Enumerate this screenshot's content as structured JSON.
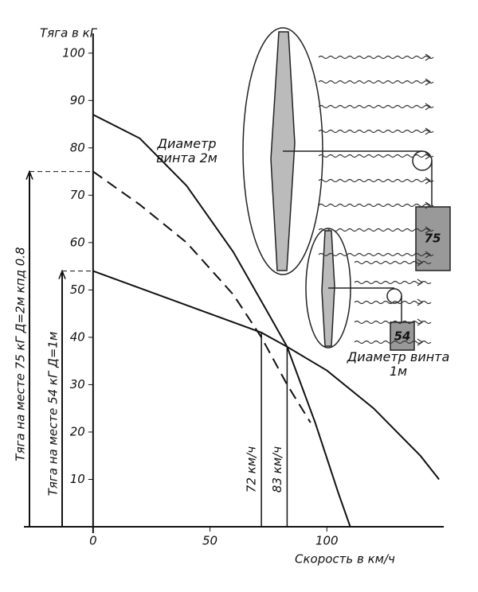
{
  "chart_data": {
    "type": "line",
    "y_label": "Тяга в кГ",
    "x_label": "Скорость в км/ч",
    "xlim": [
      -33,
      150
    ],
    "ylim": [
      0,
      105
    ],
    "xticks": [
      0,
      50,
      100
    ],
    "yticks": [
      10,
      20,
      30,
      40,
      50,
      60,
      70,
      80,
      90,
      100
    ],
    "series": [
      {
        "name": "Диаметр винта 2м",
        "color": "#111111",
        "dashed": false,
        "x": [
          0,
          20,
          40,
          60,
          75,
          83,
          95,
          105,
          110
        ],
        "values": [
          87,
          82,
          72,
          58,
          45,
          38,
          22,
          7,
          0
        ]
      },
      {
        "color": "#111111",
        "dashed": true,
        "x": [
          0,
          20,
          40,
          60,
          72,
          83,
          93
        ],
        "values": [
          75,
          68,
          60,
          49,
          40,
          30,
          22
        ]
      },
      {
        "name": "Диаметр винта 1м",
        "color": "#111111",
        "dashed": false,
        "x": [
          0,
          72,
          83,
          100,
          120,
          140,
          148
        ],
        "values": [
          54,
          41,
          38,
          33,
          25,
          15,
          10
        ]
      }
    ],
    "speed_marks": [
      {
        "label": "72 км/ч",
        "x": 72,
        "y": 41
      },
      {
        "label": "83 км/ч",
        "x": 83,
        "y": 38
      }
    ],
    "static_thrust": [
      {
        "label": "Тяга на месте 75 кГ  Д=2м  кпд 0.8",
        "value": 75
      },
      {
        "label": "Тяга на месте 54 кГ  Д=1м",
        "value": 54
      }
    ],
    "weight_labels": [
      75,
      54
    ]
  }
}
